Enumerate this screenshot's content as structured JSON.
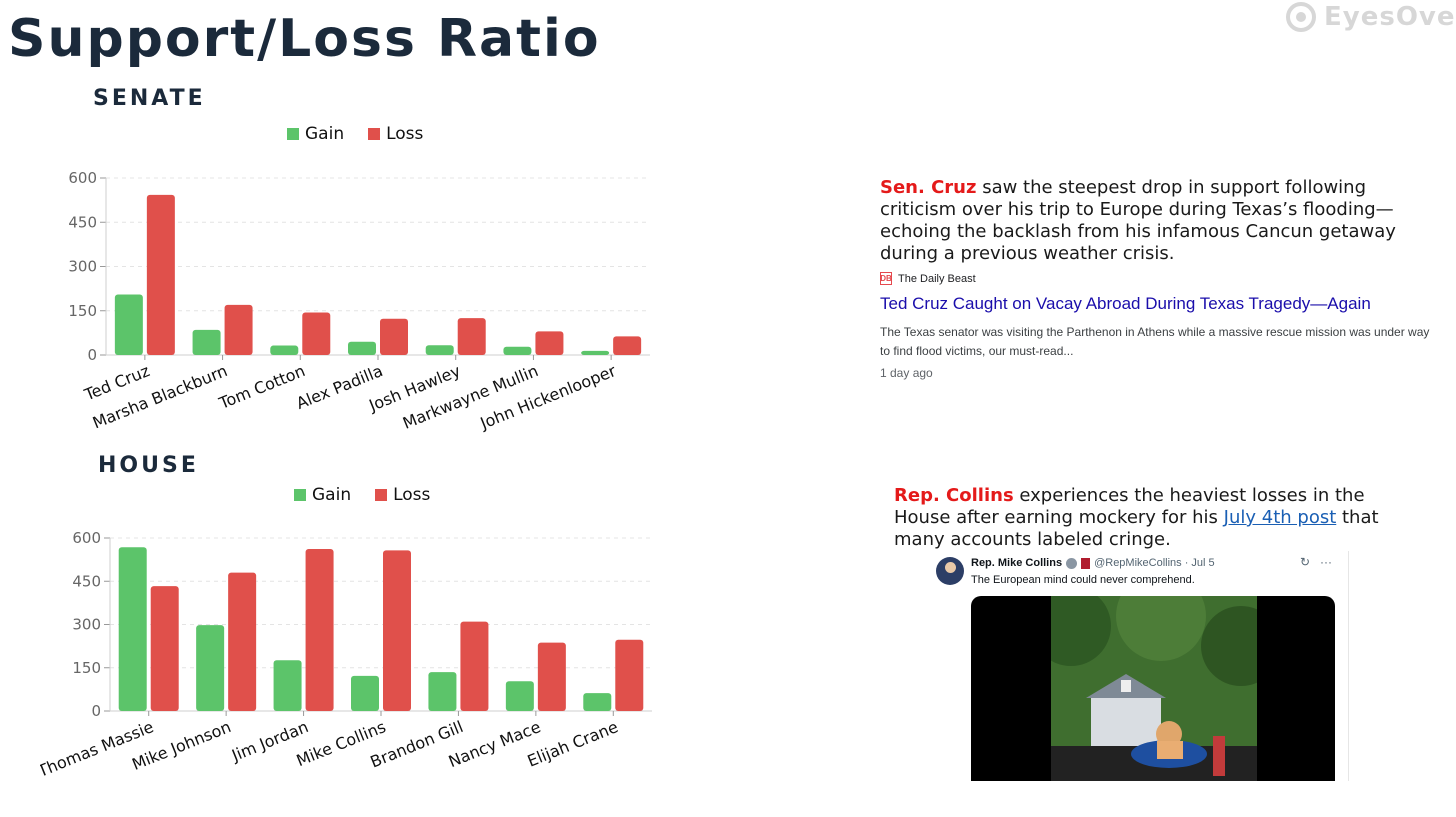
{
  "title": "Support/Loss Ratio",
  "logo": {
    "text": "EyesOver",
    "icon": "eyesover-logo-icon"
  },
  "colors": {
    "gain": "#5cc46a",
    "loss": "#e0504b",
    "highlight": "#e41a1a",
    "link": "#1a0dab"
  },
  "senate": {
    "label": "SENATE",
    "note": {
      "highlight": "Sen. Cruz",
      "text": " saw the steepest drop in support following criticism over his trip to Europe during Texas’s flooding—echoing the backlash from his infamous Cancun getaway during a previous weather crisis."
    },
    "news": {
      "source": "The Daily Beast",
      "source_icon": "DB",
      "headline": "Ted Cruz Caught on Vacay Abroad During Texas Tragedy—Again",
      "snippet": "The Texas senator was visiting the Parthenon in Athens while a massive rescue mission was under way to find flood victims, our must-read...",
      "age": "1 day ago"
    }
  },
  "house": {
    "label": "HOUSE",
    "note": {
      "highlight": "Rep. Collins",
      "text_before": " experiences the heaviest losses in the House after earning mockery for his ",
      "link": "July 4th post",
      "text_after": " that many accounts labeled cringe."
    },
    "tweet": {
      "name": "Rep. Mike Collins",
      "handle": "@RepMikeCollins · Jul 5",
      "text": "The European mind could never comprehend.",
      "more": "···",
      "refresh": "↻"
    }
  },
  "chart_data": [
    {
      "type": "bar",
      "title": "",
      "categories": [
        "Ted Cruz",
        "Marsha Blackburn",
        "Tom Cotton",
        "Alex Padilla",
        "Josh Hawley",
        "Markwayne Mullin",
        "John Hickenlooper"
      ],
      "series": [
        {
          "name": "Gain",
          "values": [
            205,
            85,
            32,
            45,
            33,
            28,
            14
          ]
        },
        {
          "name": "Loss",
          "values": [
            543,
            170,
            144,
            123,
            125,
            80,
            63
          ]
        }
      ],
      "yticks": [
        "0",
        "150",
        "300",
        "450",
        "600"
      ],
      "ylim": [
        0,
        600
      ],
      "legend": "top",
      "grid": true
    },
    {
      "type": "bar",
      "title": "",
      "categories": [
        "Thomas Massie",
        "Mike Johnson",
        "Jim Jordan",
        "Mike Collins",
        "Brandon Gill",
        "Nancy Mace",
        "Elijah Crane"
      ],
      "series": [
        {
          "name": "Gain",
          "values": [
            568,
            298,
            176,
            122,
            135,
            103,
            62
          ]
        },
        {
          "name": "Loss",
          "values": [
            433,
            480,
            562,
            557,
            310,
            237,
            247
          ]
        }
      ],
      "yticks": [
        "0",
        "150",
        "300",
        "450",
        "600"
      ],
      "ylim": [
        0,
        600
      ],
      "legend": "top",
      "grid": true
    }
  ]
}
